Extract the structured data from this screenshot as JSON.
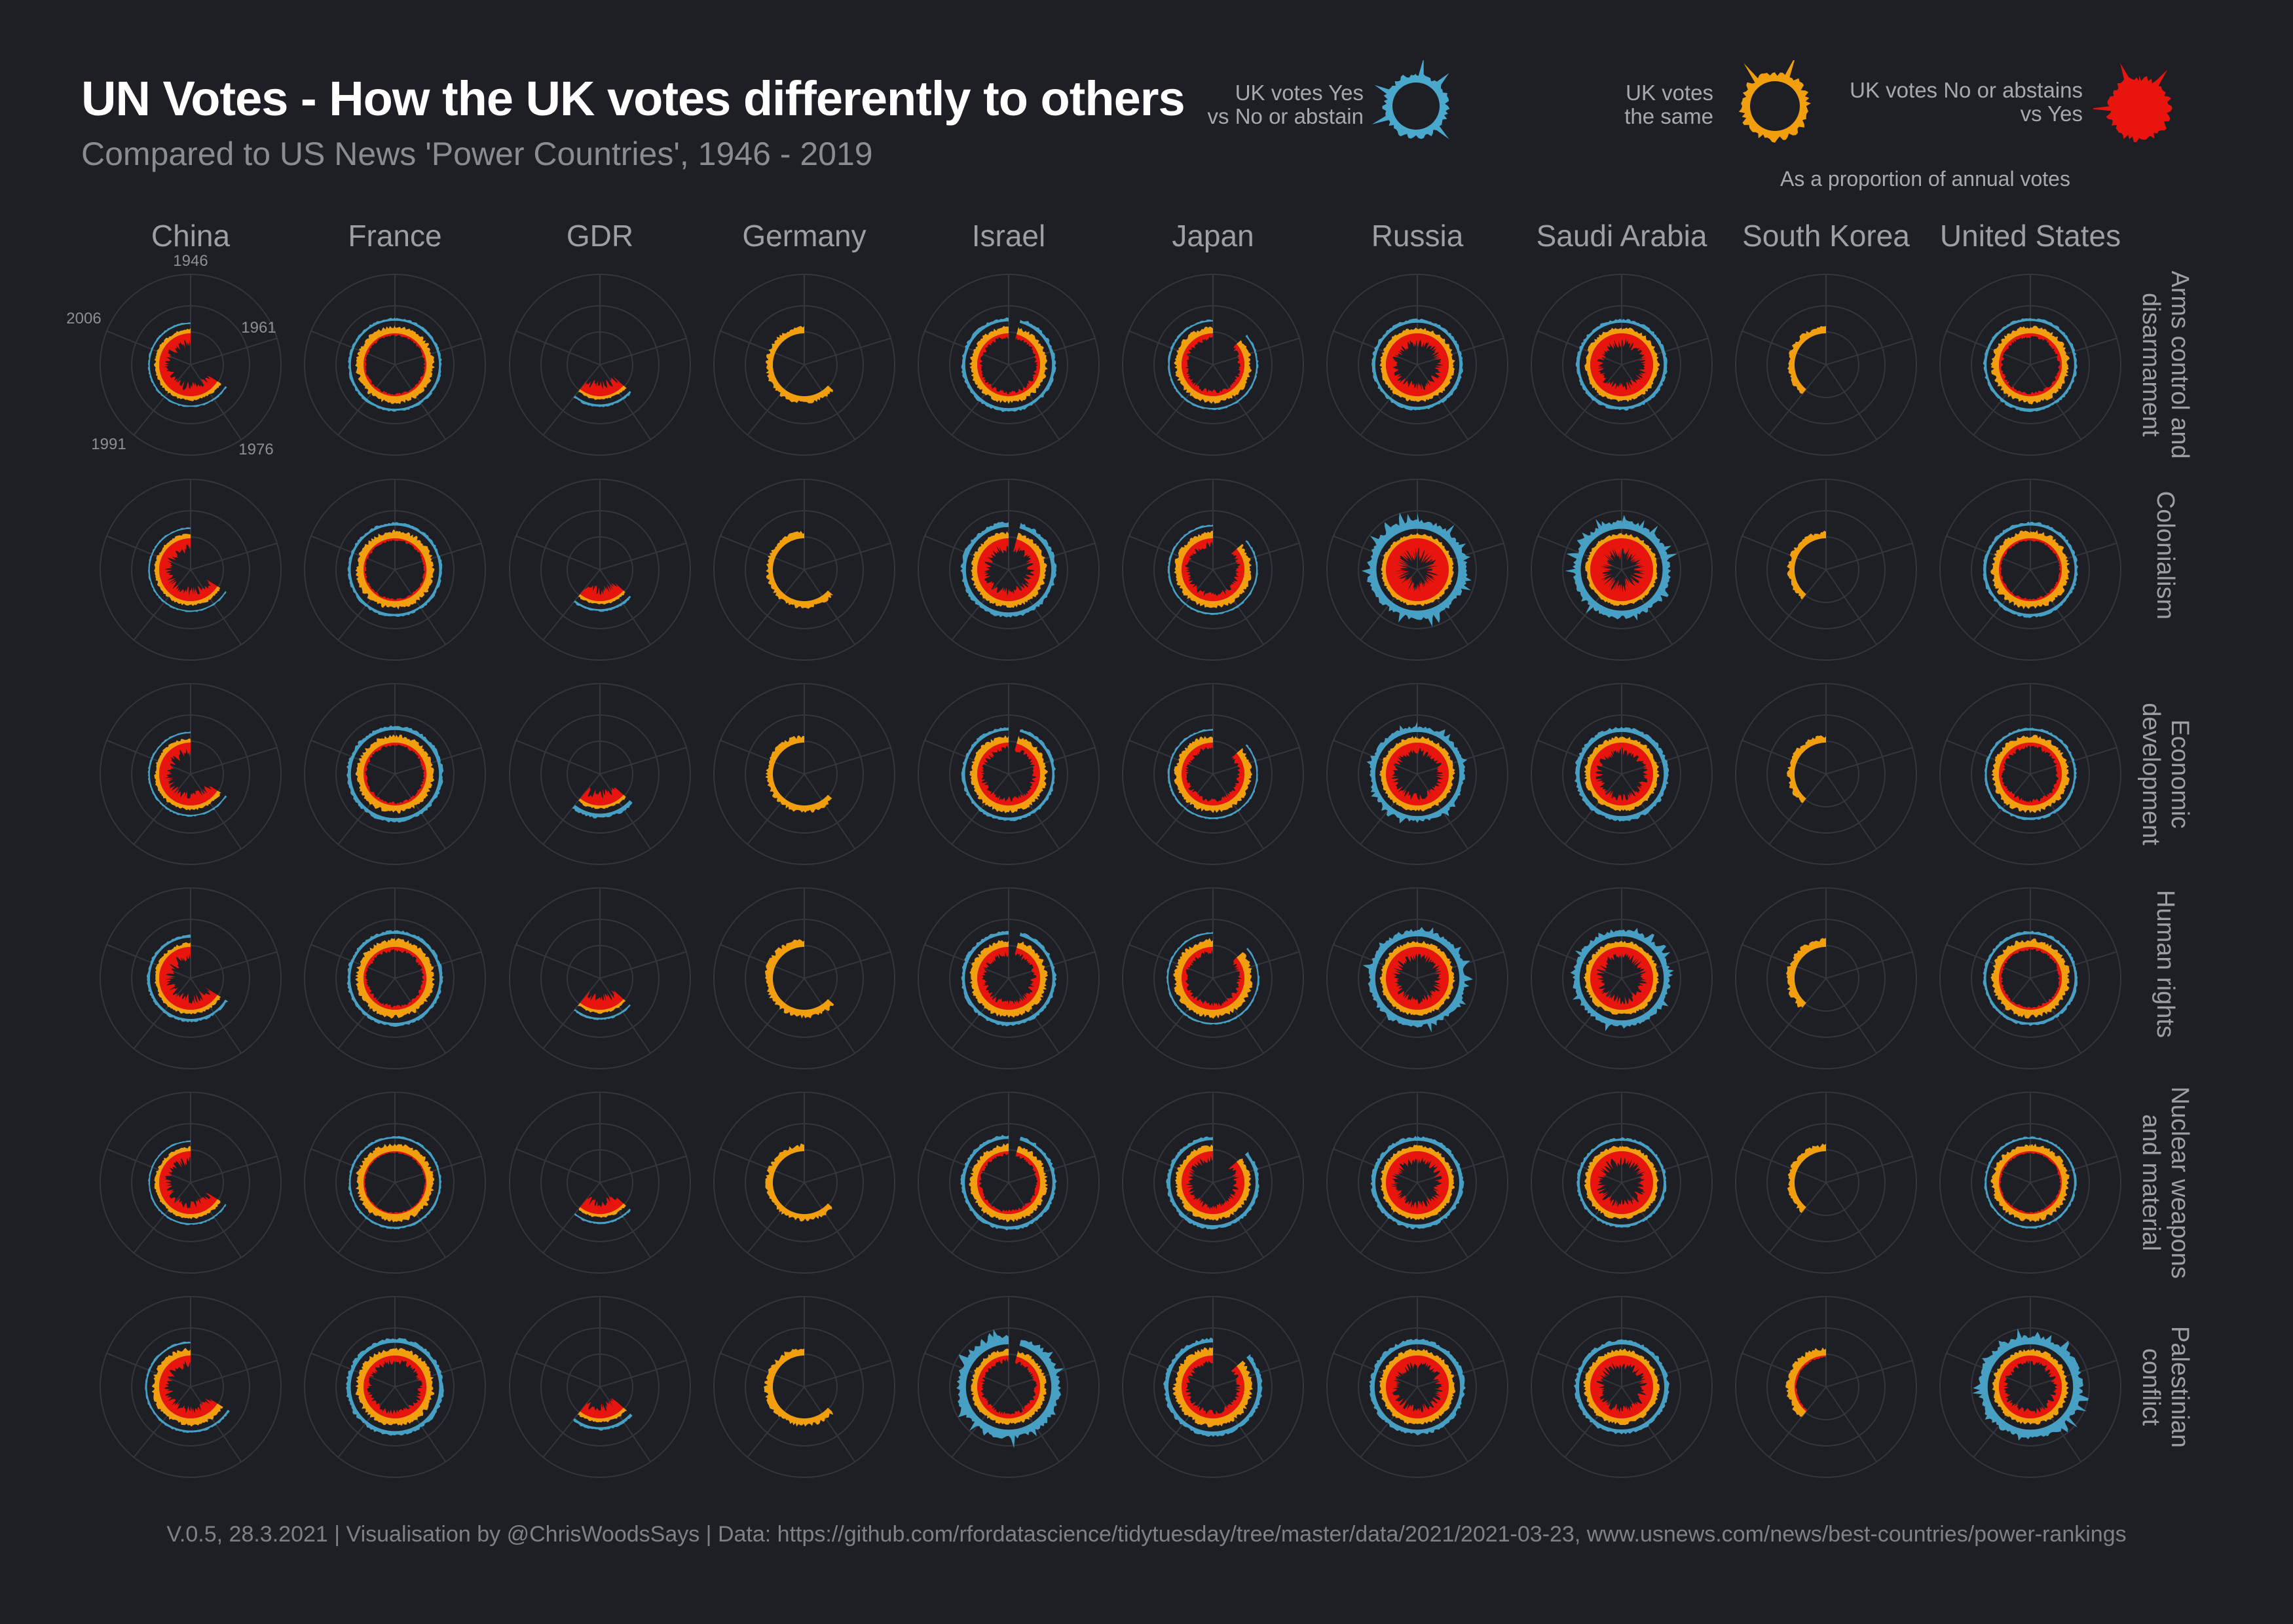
{
  "title": "UN Votes - How the UK votes differently to others",
  "subtitle": "Compared to US News 'Power Countries', 1946 - 2019",
  "legend": {
    "yes": {
      "line1": "UK votes Yes",
      "line2": "vs No or abstain",
      "color": "#4aa8cc"
    },
    "same": {
      "line1": "UK votes",
      "line2": "the same",
      "color": "#f29f0f"
    },
    "no": {
      "line1": "UK votes No or abstains",
      "line2": "vs Yes",
      "color": "#e8140e"
    },
    "note": "As a proportion of annual votes"
  },
  "footer": "V.0.5, 28.3.2021  |  Visualisation by @ChrisWoodsSays  |  Data: https://github.com/rfordatascience/tidytuesday/tree/master/data/2021/2021-03-23, www.usnews.com/news/best-countries/power-rankings",
  "chart_data": {
    "type": "radial",
    "year_ticks": [
      "1946",
      "1961",
      "1976",
      "1991",
      "2006"
    ],
    "columns": [
      "China",
      "France",
      "GDR",
      "Germany",
      "Israel",
      "Japan",
      "Russia",
      "Saudi Arabia",
      "South Korea",
      "United States"
    ],
    "rows": [
      {
        "line1": "Arms control and",
        "line2": "disarmament"
      },
      {
        "line1": "Colonialism",
        "line2": ""
      },
      {
        "line1": "Economic",
        "line2": "development"
      },
      {
        "line1": "Human rights",
        "line2": ""
      },
      {
        "line1": "Nuclear weapons",
        "line2": "and material"
      },
      {
        "line1": "Palestinian",
        "line2": "conflict"
      }
    ],
    "series": [
      {
        "key": "yes",
        "name": "UK votes Yes vs No or abstain",
        "color": "#4aa8cc"
      },
      {
        "key": "same",
        "name": "UK votes the same",
        "color": "#f29f0f"
      },
      {
        "key": "no",
        "name": "UK votes No or abstains vs Yes",
        "color": "#e8140e"
      }
    ],
    "note": "Approximate profiles per panel: years covered and proportion level of each vote category (0-1)",
    "panels": [
      [
        {
          "start": 1971,
          "end": 2019,
          "same": 0.42,
          "no": 0.55,
          "yes": 0.1
        },
        {
          "start": 1946,
          "end": 2019,
          "same": 0.92,
          "no": 0.12,
          "yes": 0.22
        },
        {
          "start": 1973,
          "end": 1990,
          "same": 0.25,
          "no": 0.62,
          "yes": 0.2
        },
        {
          "start": 1973,
          "end": 2019,
          "same": 0.85,
          "no": 0.05,
          "yes": 0.05
        },
        {
          "start": 1949,
          "end": 2019,
          "same": 0.82,
          "no": 0.22,
          "yes": 0.35
        },
        {
          "start": 1956,
          "end": 2019,
          "same": 0.8,
          "no": 0.28,
          "yes": 0.12
        },
        {
          "start": 1946,
          "end": 2019,
          "same": 0.62,
          "no": 0.55,
          "yes": 0.32
        },
        {
          "start": 1946,
          "end": 2019,
          "same": 0.62,
          "no": 0.55,
          "yes": 0.32
        },
        {
          "start": 1991,
          "end": 2019,
          "same": 0.8,
          "no": 0.05,
          "yes": 0.05
        },
        {
          "start": 1946,
          "end": 2019,
          "same": 0.88,
          "no": 0.18,
          "yes": 0.25
        }
      ],
      [
        {
          "start": 1971,
          "end": 2019,
          "same": 0.42,
          "no": 0.55,
          "yes": 0.08
        },
        {
          "start": 1946,
          "end": 2019,
          "same": 0.95,
          "no": 0.12,
          "yes": 0.25
        },
        {
          "start": 1973,
          "end": 1990,
          "same": 0.22,
          "no": 0.6,
          "yes": 0.18
        },
        {
          "start": 1973,
          "end": 2019,
          "same": 0.8,
          "no": 0.05,
          "yes": 0.05
        },
        {
          "start": 1949,
          "end": 2019,
          "same": 0.72,
          "no": 0.55,
          "yes": 0.5
        },
        {
          "start": 1956,
          "end": 2019,
          "same": 0.8,
          "no": 0.35,
          "yes": 0.1
        },
        {
          "start": 1946,
          "end": 2019,
          "same": 0.45,
          "no": 0.9,
          "yes": 0.95
        },
        {
          "start": 1946,
          "end": 2019,
          "same": 0.45,
          "no": 0.85,
          "yes": 0.85
        },
        {
          "start": 1991,
          "end": 2019,
          "same": 0.8,
          "no": 0.05,
          "yes": 0.05
        },
        {
          "start": 1946,
          "end": 2019,
          "same": 0.95,
          "no": 0.12,
          "yes": 0.3
        }
      ],
      [
        {
          "start": 1971,
          "end": 2019,
          "same": 0.42,
          "no": 0.55,
          "yes": 0.1
        },
        {
          "start": 1946,
          "end": 2019,
          "same": 0.92,
          "no": 0.15,
          "yes": 0.4
        },
        {
          "start": 1973,
          "end": 1990,
          "same": 0.25,
          "no": 0.62,
          "yes": 0.45
        },
        {
          "start": 1973,
          "end": 2019,
          "same": 0.82,
          "no": 0.05,
          "yes": 0.05
        },
        {
          "start": 1949,
          "end": 2019,
          "same": 0.85,
          "no": 0.35,
          "yes": 0.3
        },
        {
          "start": 1956,
          "end": 2019,
          "same": 0.82,
          "no": 0.3,
          "yes": 0.1
        },
        {
          "start": 1946,
          "end": 2019,
          "same": 0.62,
          "no": 0.5,
          "yes": 0.55
        },
        {
          "start": 1946,
          "end": 2019,
          "same": 0.62,
          "no": 0.5,
          "yes": 0.5
        },
        {
          "start": 1991,
          "end": 2019,
          "same": 0.8,
          "no": 0.05,
          "yes": 0.05
        },
        {
          "start": 1946,
          "end": 2019,
          "same": 0.85,
          "no": 0.25,
          "yes": 0.2
        }
      ],
      [
        {
          "start": 1971,
          "end": 2019,
          "same": 0.4,
          "no": 0.62,
          "yes": 0.25
        },
        {
          "start": 1946,
          "end": 2019,
          "same": 1.0,
          "no": 0.2,
          "yes": 0.3
        },
        {
          "start": 1973,
          "end": 1990,
          "same": 0.22,
          "no": 0.62,
          "yes": 0.15
        },
        {
          "start": 1973,
          "end": 2019,
          "same": 1.0,
          "no": 0.05,
          "yes": 0.05
        },
        {
          "start": 1949,
          "end": 2019,
          "same": 0.88,
          "no": 0.4,
          "yes": 0.35
        },
        {
          "start": 1956,
          "end": 2019,
          "same": 1.0,
          "no": 0.3,
          "yes": 0.1
        },
        {
          "start": 1946,
          "end": 2019,
          "same": 0.62,
          "no": 0.55,
          "yes": 0.7
        },
        {
          "start": 1946,
          "end": 2019,
          "same": 0.62,
          "no": 0.55,
          "yes": 0.7
        },
        {
          "start": 1991,
          "end": 2019,
          "same": 1.0,
          "no": 0.05,
          "yes": 0.05
        },
        {
          "start": 1946,
          "end": 2019,
          "same": 0.95,
          "no": 0.15,
          "yes": 0.25
        }
      ],
      [
        {
          "start": 1971,
          "end": 2019,
          "same": 0.4,
          "no": 0.55,
          "yes": 0.08
        },
        {
          "start": 1946,
          "end": 2019,
          "same": 0.95,
          "no": 0.08,
          "yes": 0.15
        },
        {
          "start": 1973,
          "end": 1990,
          "same": 0.22,
          "no": 0.6,
          "yes": 0.12
        },
        {
          "start": 1973,
          "end": 2019,
          "same": 0.82,
          "no": 0.05,
          "yes": 0.05
        },
        {
          "start": 1949,
          "end": 2019,
          "same": 0.88,
          "no": 0.18,
          "yes": 0.35
        },
        {
          "start": 1956,
          "end": 2019,
          "same": 0.7,
          "no": 0.45,
          "yes": 0.35
        },
        {
          "start": 1946,
          "end": 2019,
          "same": 0.6,
          "no": 0.55,
          "yes": 0.4
        },
        {
          "start": 1946,
          "end": 2019,
          "same": 0.6,
          "no": 0.6,
          "yes": 0.25
        },
        {
          "start": 1991,
          "end": 2019,
          "same": 0.8,
          "no": 0.05,
          "yes": 0.05
        },
        {
          "start": 1946,
          "end": 2019,
          "same": 0.88,
          "no": 0.1,
          "yes": 0.15
        }
      ],
      [
        {
          "start": 1971,
          "end": 2019,
          "same": 0.85,
          "no": 0.5,
          "yes": 0.15
        },
        {
          "start": 1946,
          "end": 2019,
          "same": 0.95,
          "no": 0.35,
          "yes": 0.45
        },
        {
          "start": 1973,
          "end": 1990,
          "same": 0.35,
          "no": 0.62,
          "yes": 0.25
        },
        {
          "start": 1973,
          "end": 2019,
          "same": 1.0,
          "no": 0.05,
          "yes": 0.05
        },
        {
          "start": 1949,
          "end": 2019,
          "same": 0.72,
          "no": 0.28,
          "yes": 1.0
        },
        {
          "start": 1956,
          "end": 2019,
          "same": 1.0,
          "no": 0.35,
          "yes": 0.45
        },
        {
          "start": 1946,
          "end": 2019,
          "same": 0.72,
          "no": 0.55,
          "yes": 0.5
        },
        {
          "start": 1946,
          "end": 2019,
          "same": 0.7,
          "no": 0.55,
          "yes": 0.45
        },
        {
          "start": 1991,
          "end": 2019,
          "same": 1.0,
          "no": 0.1,
          "yes": 0.05
        },
        {
          "start": 1946,
          "end": 2019,
          "same": 0.72,
          "no": 0.4,
          "yes": 1.0
        }
      ]
    ]
  }
}
